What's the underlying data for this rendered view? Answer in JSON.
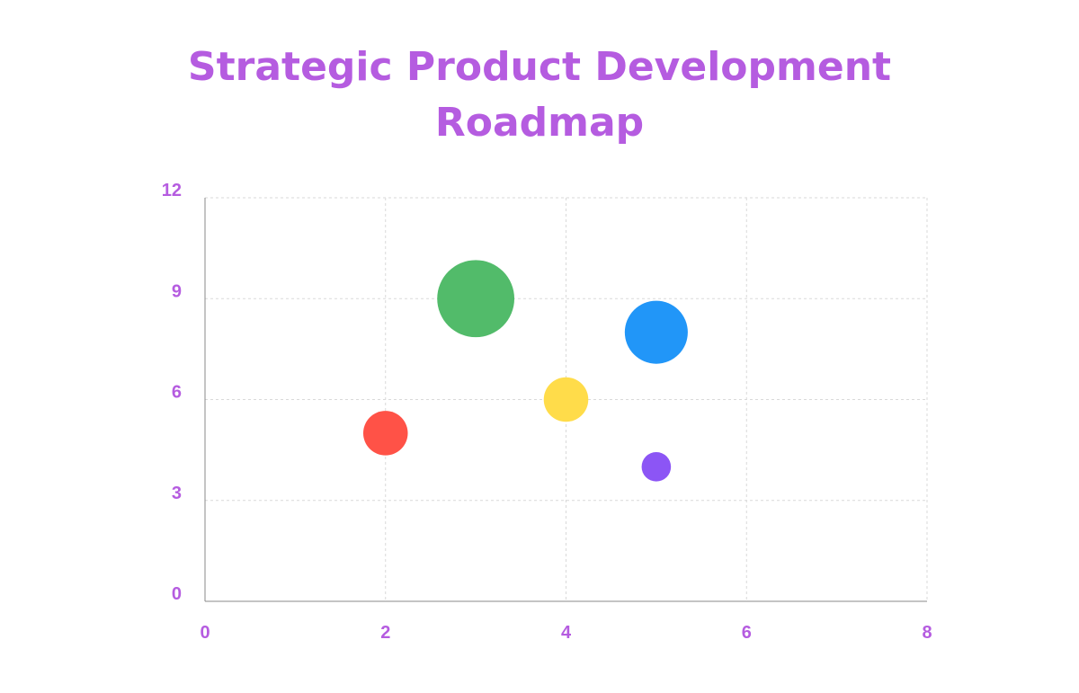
{
  "chart_data": {
    "type": "scatter",
    "title_lines": [
      "Strategic Product Development",
      "Roadmap"
    ],
    "xlabel": "",
    "ylabel": "",
    "xlim": [
      0,
      8
    ],
    "ylim": [
      0,
      12
    ],
    "x_ticks": [
      0,
      2,
      4,
      6,
      8
    ],
    "y_ticks": [
      0,
      3,
      6,
      9,
      12
    ],
    "grid": true,
    "axis_color": "#b55ce0",
    "grid_color": "#d9d9d9",
    "points": [
      {
        "x": 2,
        "y": 5,
        "size": 3,
        "color": "#ff5247"
      },
      {
        "x": 3,
        "y": 9,
        "size": 9,
        "color": "#52bb6a"
      },
      {
        "x": 4,
        "y": 6,
        "size": 3,
        "color": "#ffdc4a"
      },
      {
        "x": 5,
        "y": 8,
        "size": 6,
        "color": "#2196f8"
      },
      {
        "x": 5,
        "y": 4,
        "size": 1.3,
        "color": "#8c55f5"
      }
    ]
  }
}
